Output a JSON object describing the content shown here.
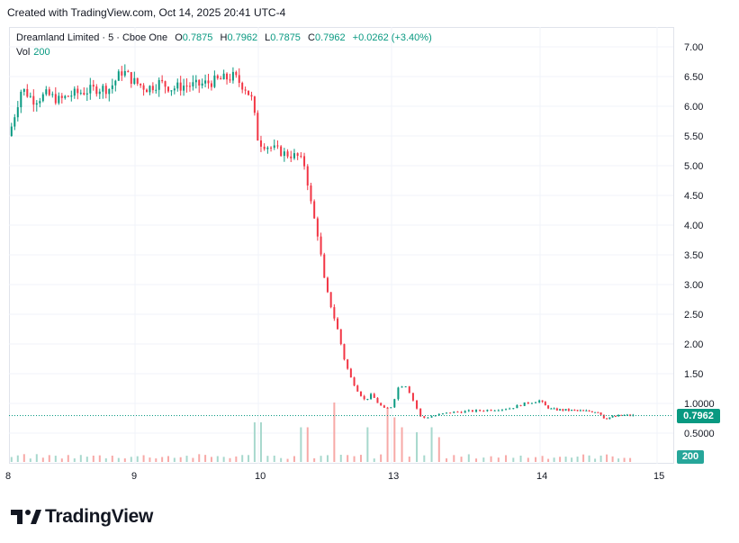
{
  "header": {
    "created_note": "Created with TradingView.com, Oct 14, 2025 20:41 UTC-4"
  },
  "legend": {
    "symbol": "Dreamland Limited · 5 · Cboe One",
    "open_label": "O",
    "open": "0.7875",
    "high_label": "H",
    "high": "0.7962",
    "low_label": "L",
    "low": "0.7875",
    "close_label": "C",
    "close": "0.7962",
    "change": "+0.0262 (+3.40%)",
    "vol_label": "Vol",
    "vol": "200"
  },
  "price_tag": "0.7962",
  "volume_tag": "200",
  "branding": {
    "logo_text": "TradingView"
  },
  "colors": {
    "up": "#089981",
    "down": "#f23645",
    "vol_up": "#a7d8cd",
    "vol_down": "#f7a9a7",
    "grid": "#f0f3fa"
  },
  "chart_data": {
    "type": "candlestick",
    "y_ticks": [
      "7.00",
      "6.50",
      "6.00",
      "5.50",
      "5.00",
      "4.50",
      "4.00",
      "3.50",
      "3.00",
      "2.50",
      "2.00",
      "1.50",
      "1.0000",
      "0.5000"
    ],
    "x_ticks": [
      "8",
      "9",
      "10",
      "13",
      "14",
      "15"
    ],
    "ylim": [
      0.3,
      7.2
    ],
    "last_price": 0.7962,
    "series": [
      {
        "t": 0.0,
        "p": 5.5
      },
      {
        "t": 0.1,
        "p": 6.3
      },
      {
        "t": 0.2,
        "p": 6.1
      },
      {
        "t": 0.3,
        "p": 6.2
      },
      {
        "t": 0.4,
        "p": 6.1
      },
      {
        "t": 0.5,
        "p": 6.2
      },
      {
        "t": 0.6,
        "p": 6.25
      },
      {
        "t": 0.7,
        "p": 6.3
      },
      {
        "t": 0.8,
        "p": 6.3
      },
      {
        "t": 0.9,
        "p": 6.6
      },
      {
        "t": 1.0,
        "p": 6.4
      },
      {
        "t": 1.1,
        "p": 6.3
      },
      {
        "t": 1.2,
        "p": 6.4
      },
      {
        "t": 1.3,
        "p": 6.3
      },
      {
        "t": 1.4,
        "p": 6.35
      },
      {
        "t": 1.5,
        "p": 6.35
      },
      {
        "t": 1.6,
        "p": 6.4
      },
      {
        "t": 1.7,
        "p": 6.45
      },
      {
        "t": 1.8,
        "p": 6.5
      },
      {
        "t": 1.9,
        "p": 6.3
      },
      {
        "t": 1.95,
        "p": 6.1
      },
      {
        "t": 2.0,
        "p": 5.4
      },
      {
        "t": 2.1,
        "p": 5.3
      },
      {
        "t": 2.2,
        "p": 5.2
      },
      {
        "t": 2.3,
        "p": 5.15
      },
      {
        "t": 2.35,
        "p": 5.0
      },
      {
        "t": 2.4,
        "p": 4.3
      },
      {
        "t": 2.45,
        "p": 3.8
      },
      {
        "t": 2.5,
        "p": 3.0
      },
      {
        "t": 2.55,
        "p": 2.6
      },
      {
        "t": 2.6,
        "p": 2.2
      },
      {
        "t": 2.65,
        "p": 1.7
      },
      {
        "t": 2.7,
        "p": 1.4
      },
      {
        "t": 2.75,
        "p": 1.2
      },
      {
        "t": 2.8,
        "p": 1.05
      },
      {
        "t": 2.85,
        "p": 1.15
      },
      {
        "t": 2.9,
        "p": 1.0
      },
      {
        "t": 2.95,
        "p": 0.9
      },
      {
        "t": 3.0,
        "p": 0.95
      },
      {
        "t": 3.05,
        "p": 1.3
      },
      {
        "t": 3.1,
        "p": 1.3
      },
      {
        "t": 3.2,
        "p": 0.75
      },
      {
        "t": 3.3,
        "p": 0.8
      },
      {
        "t": 3.4,
        "p": 0.85
      },
      {
        "t": 3.6,
        "p": 0.88
      },
      {
        "t": 3.8,
        "p": 0.92
      },
      {
        "t": 3.9,
        "p": 1.0
      },
      {
        "t": 4.0,
        "p": 1.05
      },
      {
        "t": 4.05,
        "p": 0.95
      },
      {
        "t": 4.1,
        "p": 0.9
      },
      {
        "t": 4.3,
        "p": 0.88
      },
      {
        "t": 4.5,
        "p": 0.86
      },
      {
        "t": 4.55,
        "p": 0.75
      },
      {
        "t": 4.7,
        "p": 0.8
      },
      {
        "t": 4.8,
        "p": 0.7962
      }
    ],
    "volume_spikes": [
      {
        "t": 2.0,
        "v": 0.4
      },
      {
        "t": 2.35,
        "v": 0.35
      },
      {
        "t": 2.55,
        "v": 0.6
      },
      {
        "t": 2.8,
        "v": 0.35
      },
      {
        "t": 2.95,
        "v": 0.55
      },
      {
        "t": 3.0,
        "v": 0.45
      },
      {
        "t": 3.05,
        "v": 0.35
      },
      {
        "t": 3.15,
        "v": 0.3
      },
      {
        "t": 3.25,
        "v": 0.35
      },
      {
        "t": 3.3,
        "v": 0.25
      }
    ]
  }
}
